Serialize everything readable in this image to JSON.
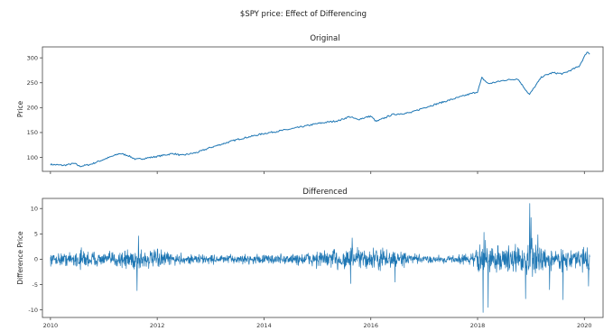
{
  "figure": {
    "title": "$SPY price: Effect of Differencing"
  },
  "chart_data": [
    {
      "type": "line",
      "title": "Original",
      "xlabel": "",
      "ylabel": "Price",
      "xlim": [
        2009.85,
        2020.35
      ],
      "ylim": [
        72,
        322
      ],
      "yticks": [
        100,
        150,
        200,
        250,
        300
      ],
      "xticks": [
        2010,
        2012,
        2014,
        2016,
        2018,
        2020
      ],
      "xtick_labels_shown": false,
      "color": "#1f77b4",
      "series": [
        {
          "x": [
            2010.0,
            2010.25,
            2010.45,
            2010.55,
            2010.75,
            2011.0,
            2011.3,
            2011.45,
            2011.6,
            2011.75,
            2012.0,
            2012.3,
            2012.45,
            2012.75,
            2013.0,
            2013.5,
            2014.0,
            2014.5,
            2015.0,
            2015.4,
            2015.6,
            2015.75,
            2016.0,
            2016.1,
            2016.4,
            2016.75,
            2017.0,
            2017.5,
            2018.0,
            2018.08,
            2018.2,
            2018.5,
            2018.75,
            2018.97,
            2019.2,
            2019.4,
            2019.6,
            2019.9,
            2020.05,
            2020.1
          ],
          "values": [
            86,
            84,
            88,
            82,
            86,
            96,
            108,
            104,
            96,
            98,
            102,
            108,
            104,
            110,
            120,
            136,
            148,
            157,
            168,
            174,
            182,
            176,
            183,
            172,
            186,
            190,
            200,
            216,
            232,
            260,
            248,
            255,
            258,
            226,
            262,
            270,
            268,
            283,
            312,
            308
          ]
        }
      ]
    },
    {
      "type": "line",
      "title": "Differenced",
      "xlabel": "",
      "ylabel": "Difference Price",
      "xlim": [
        2009.85,
        2020.35
      ],
      "ylim": [
        -11.5,
        12.0
      ],
      "yticks": [
        -10,
        -5,
        0,
        5,
        10
      ],
      "xticks": [
        2010,
        2012,
        2014,
        2016,
        2018,
        2020
      ],
      "xtick_labels": [
        "2010",
        "2012",
        "2014",
        "2016",
        "2018",
        "2020"
      ],
      "color": "#1f77b4",
      "series": [
        {
          "note_generation": "daily differences of the price series",
          "envelope": {
            "x": [
              2010.0,
              2010.4,
              2010.6,
              2011.0,
              2011.6,
              2011.8,
              2012.5,
              2013.5,
              2014.5,
              2015.6,
              2015.8,
              2016.2,
              2017.0,
              2017.9,
              2018.1,
              2018.3,
              2018.8,
              2019.0,
              2019.3,
              2019.8,
              2020.1
            ],
            "amplitude": [
              1.5,
              2.0,
              3.0,
              1.5,
              3.5,
              2.8,
              1.4,
              1.2,
              1.5,
              3.5,
              2.8,
              3.0,
              1.0,
              1.4,
              6.0,
              3.5,
              3.5,
              7.5,
              3.0,
              2.5,
              3.5
            ]
          },
          "spikes": [
            {
              "x": 2011.62,
              "y": -6.2
            },
            {
              "x": 2011.65,
              "y": 4.6
            },
            {
              "x": 2015.62,
              "y": -4.8
            },
            {
              "x": 2015.65,
              "y": 4.2
            },
            {
              "x": 2016.45,
              "y": -4.5
            },
            {
              "x": 2018.1,
              "y": -10.5
            },
            {
              "x": 2018.12,
              "y": 5.3
            },
            {
              "x": 2018.2,
              "y": -9.5
            },
            {
              "x": 2018.9,
              "y": -7.8
            },
            {
              "x": 2018.98,
              "y": 11.0
            },
            {
              "x": 2019.0,
              "y": 8.2
            },
            {
              "x": 2019.6,
              "y": -8.0
            },
            {
              "x": 2019.35,
              "y": -6.0
            },
            {
              "x": 2020.08,
              "y": -5.3
            }
          ]
        }
      ]
    }
  ]
}
